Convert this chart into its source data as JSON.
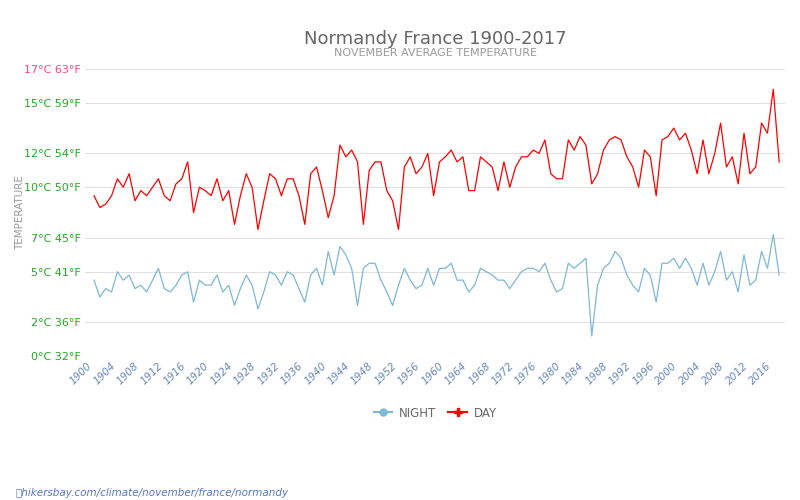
{
  "title": "Normandy France 1900-2017",
  "subtitle": "NOVEMBER AVERAGE TEMPERATURE",
  "ylabel": "TEMPERATURE",
  "url_text": "hikersbay.com/climate/november/france/normandy",
  "years": [
    1900,
    1901,
    1902,
    1903,
    1904,
    1905,
    1906,
    1907,
    1908,
    1909,
    1910,
    1911,
    1912,
    1913,
    1914,
    1915,
    1916,
    1917,
    1918,
    1919,
    1920,
    1921,
    1922,
    1923,
    1924,
    1925,
    1926,
    1927,
    1928,
    1929,
    1930,
    1931,
    1932,
    1933,
    1934,
    1935,
    1936,
    1937,
    1938,
    1939,
    1940,
    1941,
    1942,
    1943,
    1944,
    1945,
    1946,
    1947,
    1948,
    1949,
    1950,
    1951,
    1952,
    1953,
    1954,
    1955,
    1956,
    1957,
    1958,
    1959,
    1960,
    1961,
    1962,
    1963,
    1964,
    1965,
    1966,
    1967,
    1968,
    1969,
    1970,
    1971,
    1972,
    1973,
    1974,
    1975,
    1976,
    1977,
    1978,
    1979,
    1980,
    1981,
    1982,
    1983,
    1984,
    1985,
    1986,
    1987,
    1988,
    1989,
    1990,
    1991,
    1992,
    1993,
    1994,
    1995,
    1996,
    1997,
    1998,
    1999,
    2000,
    2001,
    2002,
    2003,
    2004,
    2005,
    2006,
    2007,
    2008,
    2009,
    2010,
    2011,
    2012,
    2013,
    2014,
    2015,
    2016,
    2017
  ],
  "day_temps": [
    9.5,
    8.8,
    9.0,
    9.5,
    10.5,
    10.0,
    10.8,
    9.2,
    9.8,
    9.5,
    10.0,
    10.5,
    9.5,
    9.2,
    10.2,
    10.5,
    11.5,
    8.5,
    10.0,
    9.8,
    9.5,
    10.5,
    9.2,
    9.8,
    7.8,
    9.5,
    10.8,
    10.0,
    7.5,
    9.2,
    10.8,
    10.5,
    9.5,
    10.5,
    10.5,
    9.5,
    7.8,
    10.8,
    11.2,
    9.8,
    8.2,
    9.5,
    12.5,
    11.8,
    12.2,
    11.5,
    7.8,
    11.0,
    11.5,
    11.5,
    9.8,
    9.2,
    7.5,
    11.2,
    11.8,
    10.8,
    11.2,
    12.0,
    9.5,
    11.5,
    11.8,
    12.2,
    11.5,
    11.8,
    9.8,
    9.8,
    11.8,
    11.5,
    11.2,
    9.8,
    11.5,
    10.0,
    11.2,
    11.8,
    11.8,
    12.2,
    12.0,
    12.8,
    10.8,
    10.5,
    10.5,
    12.8,
    12.2,
    13.0,
    12.5,
    10.2,
    10.8,
    12.2,
    12.8,
    13.0,
    12.8,
    11.8,
    11.2,
    10.0,
    12.2,
    11.8,
    9.5,
    12.8,
    13.0,
    13.5,
    12.8,
    13.2,
    12.2,
    10.8,
    12.8,
    10.8,
    12.0,
    13.8,
    11.2,
    11.8,
    10.2,
    13.2,
    10.8,
    11.2,
    13.8,
    13.2,
    15.8,
    11.5
  ],
  "night_temps": [
    4.5,
    3.5,
    4.0,
    3.8,
    5.0,
    4.5,
    4.8,
    4.0,
    4.2,
    3.8,
    4.5,
    5.2,
    4.0,
    3.8,
    4.2,
    4.8,
    5.0,
    3.2,
    4.5,
    4.2,
    4.2,
    4.8,
    3.8,
    4.2,
    3.0,
    4.0,
    4.8,
    4.2,
    2.8,
    3.8,
    5.0,
    4.8,
    4.2,
    5.0,
    4.8,
    4.0,
    3.2,
    4.8,
    5.2,
    4.2,
    6.2,
    4.8,
    6.5,
    6.0,
    5.2,
    3.0,
    5.2,
    5.5,
    5.5,
    4.5,
    3.8,
    3.0,
    4.2,
    5.2,
    4.5,
    4.0,
    4.2,
    5.2,
    4.2,
    5.2,
    5.2,
    5.5,
    4.5,
    4.5,
    3.8,
    4.2,
    5.2,
    5.0,
    4.8,
    4.5,
    4.5,
    4.0,
    4.5,
    5.0,
    5.2,
    5.2,
    5.0,
    5.5,
    4.5,
    3.8,
    4.0,
    5.5,
    5.2,
    5.5,
    5.8,
    1.2,
    4.2,
    5.2,
    5.5,
    6.2,
    5.8,
    4.8,
    4.2,
    3.8,
    5.2,
    4.8,
    3.2,
    5.5,
    5.5,
    5.8,
    5.2,
    5.8,
    5.2,
    4.2,
    5.5,
    4.2,
    5.0,
    6.2,
    4.5,
    5.0,
    3.8,
    6.0,
    4.2,
    4.5,
    6.2,
    5.2,
    7.2,
    4.8
  ],
  "day_color": "#ff0000",
  "night_color": "#7db8d4",
  "title_color": "#666666",
  "subtitle_color": "#999999",
  "ylabel_color": "#999999",
  "ytick_color_green": "#22aa22",
  "ytick_color_pink": "#ff4488",
  "xtick_color": "#6688bb",
  "grid_color": "#e0e0e0",
  "background_color": "#ffffff",
  "ylim": [
    0,
    17
  ],
  "yticks_c": [
    0,
    2,
    5,
    7,
    10,
    12,
    15,
    17
  ],
  "yticks_f": [
    32,
    36,
    41,
    45,
    50,
    54,
    59,
    63
  ],
  "url_color": "#5577cc",
  "pin_color": "#ff4444",
  "legend_text_color": "#666666",
  "figsize": [
    8.0,
    5.0
  ],
  "dpi": 100
}
